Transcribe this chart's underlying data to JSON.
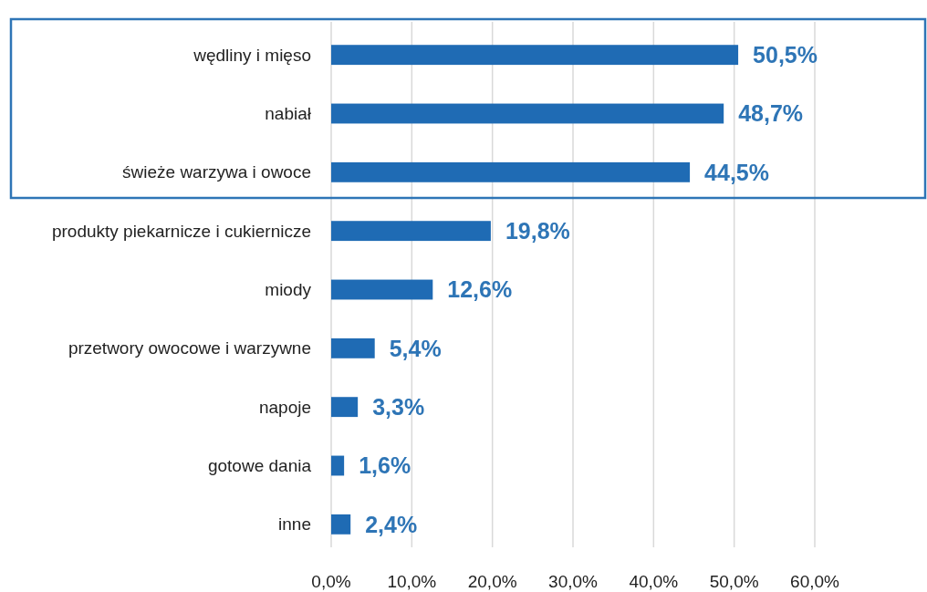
{
  "chart_data": {
    "type": "bar",
    "orientation": "horizontal",
    "categories": [
      "wędliny i mięso",
      "nabiał",
      "świeże warzywa i owoce",
      "produkty piekarnicze i cukiernicze",
      "miody",
      "przetwory owocowe i warzywne",
      "napoje",
      "gotowe dania",
      "inne"
    ],
    "values": [
      50.5,
      48.7,
      44.5,
      19.8,
      12.6,
      5.4,
      3.3,
      1.6,
      2.4
    ],
    "value_labels": [
      "50,5%",
      "48,7%",
      "44,5%",
      "19,8%",
      "12,6%",
      "5,4%",
      "3,3%",
      "1,6%",
      "2,4%"
    ],
    "color": "#1f6bb4",
    "xlim": [
      0,
      60
    ],
    "xticks": [
      {
        "value": 0,
        "label": "0,0%"
      },
      {
        "value": 10,
        "label": "10,0%"
      },
      {
        "value": 20,
        "label": "20,0%"
      },
      {
        "value": 30,
        "label": "30,0%"
      },
      {
        "value": 40,
        "label": "40,0%"
      },
      {
        "value": 50,
        "label": "50,0%"
      },
      {
        "value": 60,
        "label": "60,0%"
      }
    ],
    "grid": "x"
  }
}
